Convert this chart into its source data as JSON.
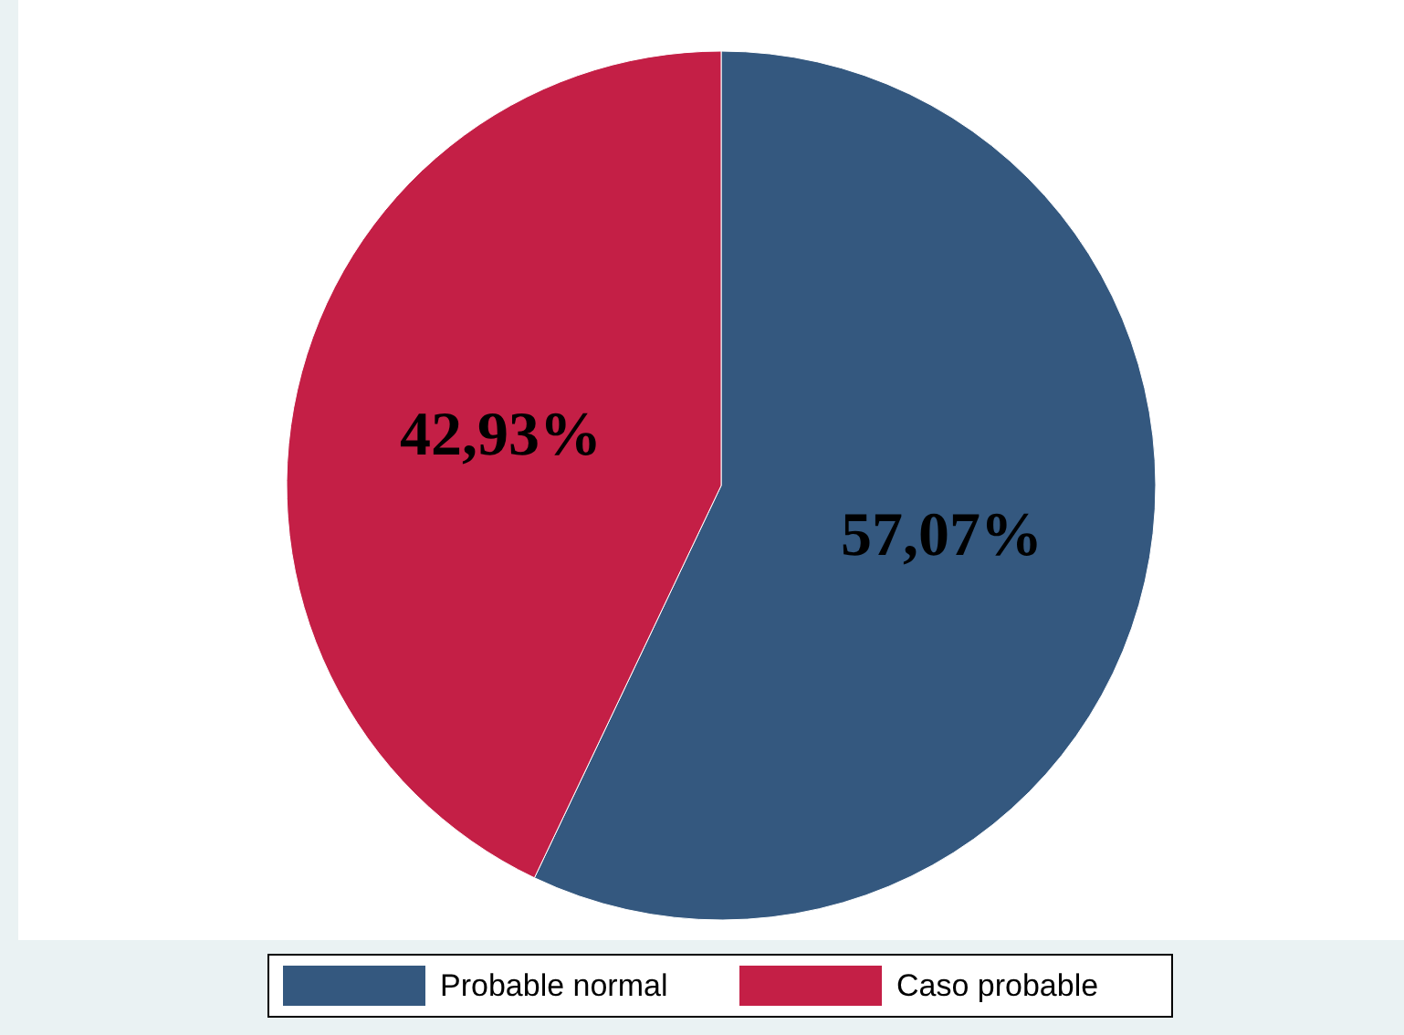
{
  "chart_data": {
    "type": "pie",
    "categories": [
      "Probable normal",
      "Caso probable"
    ],
    "values": [
      57.07,
      42.93
    ],
    "colors": [
      "#34587f",
      "#c41f46"
    ],
    "value_labels": [
      "57,07%",
      "42,93%"
    ],
    "legend": "bottom"
  }
}
